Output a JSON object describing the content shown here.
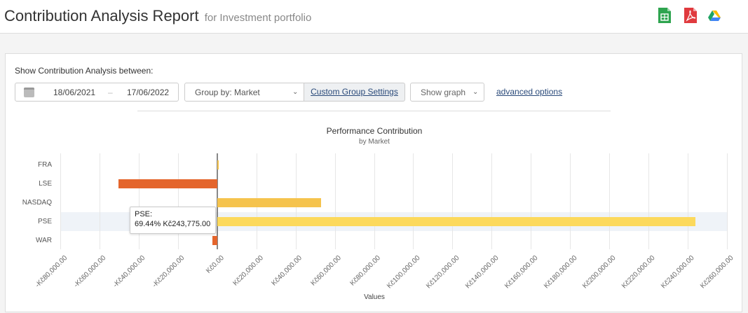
{
  "header": {
    "title": "Contribution Analysis Report",
    "subtitle": "for Investment portfolio",
    "export_icons": [
      "spreadsheet-icon",
      "pdf-icon",
      "google-drive-icon"
    ]
  },
  "filters": {
    "label": "Show Contribution Analysis between:",
    "date_from": "18/06/2021",
    "date_separator": "–",
    "date_to": "17/06/2022",
    "group_by": "Group by: Market",
    "custom_group_settings": "Custom Group Settings",
    "show_graph": "Show graph",
    "advanced_options": "advanced options"
  },
  "tooltip": {
    "title": "PSE:",
    "value": "69.44% Kč243,775.00"
  },
  "chart_data": {
    "type": "bar",
    "orientation": "horizontal",
    "title": "Performance Contribution",
    "subtitle": "by Market",
    "xlabel": "Values",
    "ylabel": "",
    "categories": [
      "FRA",
      "LSE",
      "NASDAQ",
      "PSE",
      "WAR"
    ],
    "values": [
      500,
      -50400,
      52900,
      243775,
      -2500
    ],
    "colors": [
      "#f5c34d",
      "#e4652c",
      "#f5c34d",
      "#fcd95c",
      "#e4652c"
    ],
    "xlim": [
      -80000,
      260000
    ],
    "x_ticks": [
      "-Kč80,000.00",
      "-Kč60,000.00",
      "-Kč40,000.00",
      "-Kč20,000.00",
      "Kč0.00",
      "Kč20,000.00",
      "Kč40,000.00",
      "Kč60,000.00",
      "Kč80,000.00",
      "Kč100,000.00",
      "Kč120,000.00",
      "Kč140,000.00",
      "Kč160,000.00",
      "Kč180,000.00",
      "Kč200,000.00",
      "Kč220,000.00",
      "Kč240,000.00",
      "Kč260,000.00"
    ],
    "grid": true,
    "highlighted_category": "PSE",
    "legend": "none"
  }
}
